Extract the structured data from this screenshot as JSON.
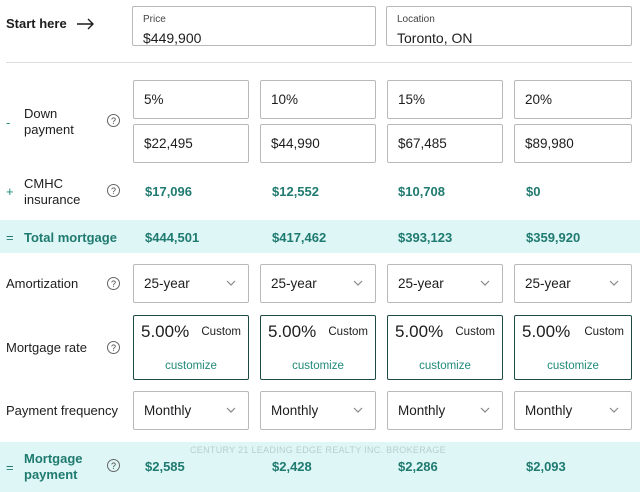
{
  "header": {
    "start_label": "Start here",
    "price": {
      "label": "Price",
      "value": "$449,900"
    },
    "location": {
      "label": "Location",
      "value": "Toronto, ON"
    }
  },
  "down_payment": {
    "sign": "-",
    "label_line1": "Down",
    "label_line2": "payment",
    "percents": [
      "5%",
      "10%",
      "15%",
      "20%"
    ],
    "amounts": [
      "$22,495",
      "$44,990",
      "$67,485",
      "$89,980"
    ]
  },
  "cmhc": {
    "sign": "+",
    "label_line1": "CMHC",
    "label_line2": "insurance",
    "values": [
      "$17,096",
      "$12,552",
      "$10,708",
      "$0"
    ]
  },
  "total_mortgage": {
    "sign": "=",
    "label": "Total mortgage",
    "values": [
      "$444,501",
      "$417,462",
      "$393,123",
      "$359,920"
    ]
  },
  "amortization": {
    "label": "Amortization",
    "values": [
      "25-year",
      "25-year",
      "25-year",
      "25-year"
    ]
  },
  "mortgage_rate": {
    "label": "Mortgage rate",
    "rates": [
      "5.00%",
      "5.00%",
      "5.00%",
      "5.00%"
    ],
    "custom_label": "Custom",
    "customize_label": "customize"
  },
  "payment_frequency": {
    "label": "Payment frequency",
    "values": [
      "Monthly",
      "Monthly",
      "Monthly",
      "Monthly"
    ]
  },
  "mortgage_payment": {
    "sign": "=",
    "label_line1": "Mortgage",
    "label_line2": "payment",
    "values": [
      "$2,585",
      "$2,428",
      "$2,286",
      "$2,093"
    ]
  },
  "info_icon_text": "?",
  "watermark": "CENTURY 21 LEADING EDGE REALTY INC. BROKERAGE",
  "colors": {
    "accent": "#1f8a7a",
    "band": "#def6f6",
    "rate_border": "#1d4a45"
  }
}
